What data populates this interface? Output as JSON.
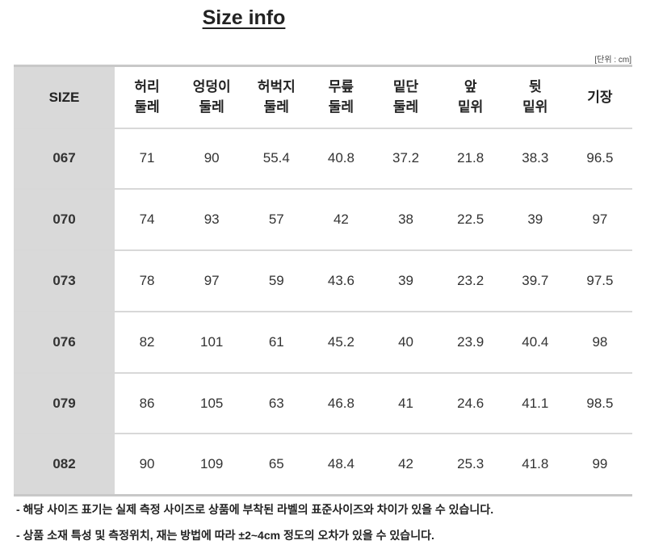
{
  "title": "Size info",
  "unit_label": "[단위 : cm]",
  "table": {
    "size_header": "SIZE",
    "headers": [
      [
        "허리",
        "둘레"
      ],
      [
        "엉덩이",
        "둘레"
      ],
      [
        "허벅지",
        "둘레"
      ],
      [
        "무릎",
        "둘레"
      ],
      [
        "밑단",
        "둘레"
      ],
      [
        "앞",
        "밑위"
      ],
      [
        "뒷",
        "밑위"
      ],
      [
        "기장",
        ""
      ]
    ],
    "rows": [
      {
        "size": "067",
        "values": [
          "71",
          "90",
          "55.4",
          "40.8",
          "37.2",
          "21.8",
          "38.3",
          "96.5"
        ]
      },
      {
        "size": "070",
        "values": [
          "74",
          "93",
          "57",
          "42",
          "38",
          "22.5",
          "39",
          "97"
        ]
      },
      {
        "size": "073",
        "values": [
          "78",
          "97",
          "59",
          "43.6",
          "39",
          "23.2",
          "39.7",
          "97.5"
        ]
      },
      {
        "size": "076",
        "values": [
          "82",
          "101",
          "61",
          "45.2",
          "40",
          "23.9",
          "40.4",
          "98"
        ]
      },
      {
        "size": "079",
        "values": [
          "86",
          "105",
          "63",
          "46.8",
          "41",
          "24.6",
          "41.1",
          "98.5"
        ]
      },
      {
        "size": "082",
        "values": [
          "90",
          "109",
          "65",
          "48.4",
          "42",
          "25.3",
          "41.8",
          "99"
        ]
      }
    ]
  },
  "notes": [
    "- 해당 사이즈 표기는 실제 측정 사이즈로 상품에 부착된 라벨의 표준사이즈와 차이가 있을 수 있습니다.",
    "- 상품 소재 특성 및 측정위치, 재는 방법에 따라 ±2~4cm 정도의 오차가 있을 수 있습니다."
  ]
}
